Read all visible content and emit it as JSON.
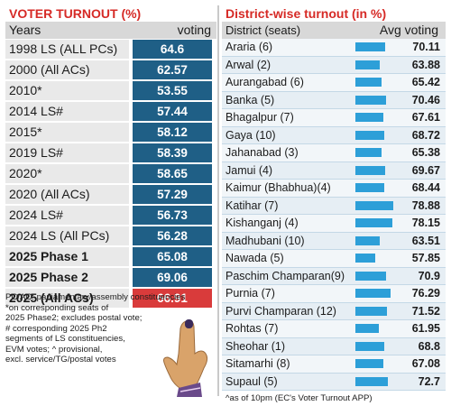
{
  "left": {
    "title": "VOTER TURNOUT (%)",
    "col_years": "Years",
    "col_voting": "voting",
    "rows": [
      {
        "label": "1998 LS (ALL PCs)",
        "value": "64.6"
      },
      {
        "label": "2000 (All ACs)",
        "value": "62.57"
      },
      {
        "label": "2010*",
        "value": "53.55"
      },
      {
        "label": "2014 LS#",
        "value": "57.44"
      },
      {
        "label": "2015*",
        "value": "58.12"
      },
      {
        "label": "2019 LS#",
        "value": "58.39"
      },
      {
        "label": "2020*",
        "value": "58.65"
      },
      {
        "label": "2020 (All ACs)",
        "value": "57.29"
      },
      {
        "label": "2024 LS#",
        "value": "56.73"
      },
      {
        "label": "2024 LS (All PCs)",
        "value": "56.28"
      },
      {
        "label": "2025 Phase 1",
        "value": "65.08"
      },
      {
        "label": "2025 Phase 2",
        "value": "69.06"
      },
      {
        "label": "2025 (All ACs)",
        "value": "66.91"
      }
    ],
    "notes": [
      "PC/AC: parliamentary/assembly constituencies",
      "*on corresponding seats of",
      "2025 Phase2; excludes postal vote;",
      "# corresponding 2025 Ph2",
      "segments of LS constituencies,",
      "EVM votes; ^ provisional,",
      "excl. service/TG/postal votes"
    ]
  },
  "right": {
    "title": "District-wise turnout (in %)",
    "col_district": "District (seats)",
    "col_voting": "Avg voting",
    "bar_color": "#2d9fd8",
    "rows": [
      {
        "district": "Araria (6)",
        "value": "70.11"
      },
      {
        "district": "Arwal (2)",
        "value": "63.88"
      },
      {
        "district": "Aurangabad (6)",
        "value": "65.42"
      },
      {
        "district": "Banka (5)",
        "value": "70.46"
      },
      {
        "district": "Bhagalpur (7)",
        "value": "67.61"
      },
      {
        "district": "Gaya (10)",
        "value": "68.72"
      },
      {
        "district": "Jahanabad (3)",
        "value": "65.38"
      },
      {
        "district": "Jamui (4)",
        "value": "69.67"
      },
      {
        "district": "Kaimur (Bhabhua)(4)",
        "value": "68.44"
      },
      {
        "district": "Katihar (7)",
        "value": "78.88"
      },
      {
        "district": "Kishanganj (4)",
        "value": "78.15"
      },
      {
        "district": "Madhubani (10)",
        "value": "63.51"
      },
      {
        "district": "Nawada (5)",
        "value": "57.85"
      },
      {
        "district": "Paschim Champaran(9)",
        "value": "70.9"
      },
      {
        "district": "Purnia (7)",
        "value": "76.29"
      },
      {
        "district": "Purvi Champaran (12)",
        "value": "71.52"
      },
      {
        "district": "Rohtas (7)",
        "value": "61.95"
      },
      {
        "district": "Sheohar (1)",
        "value": "68.8"
      },
      {
        "district": "Sitamarhi (8)",
        "value": "67.08"
      },
      {
        "district": "Supaul (5)",
        "value": "72.7"
      }
    ],
    "footnote": "^as of 10pm (EC's Voter Turnout APP)"
  }
}
